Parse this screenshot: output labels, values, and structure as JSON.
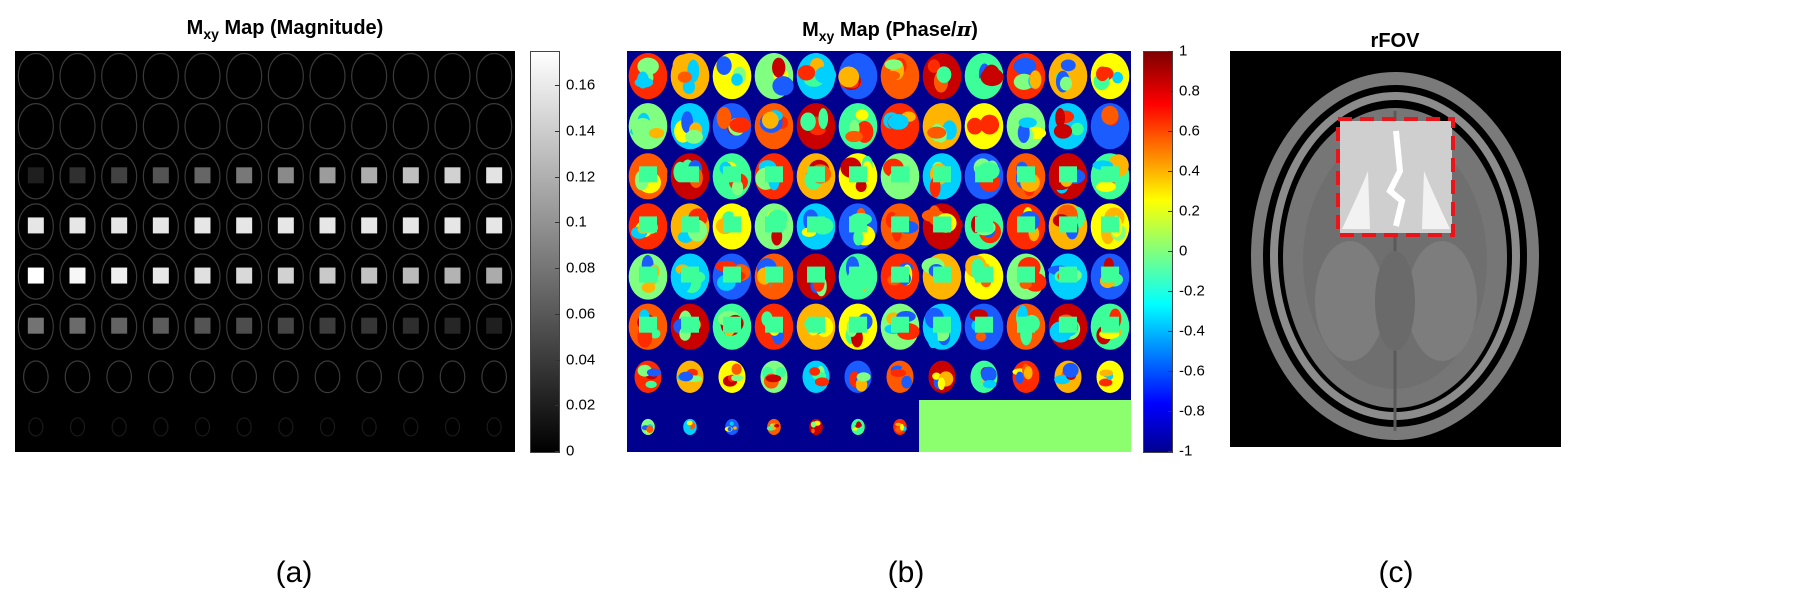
{
  "figure": {
    "panel_a": {
      "title_main": "M",
      "title_sub": "xy",
      "title_rest": " Map (Magnitude)",
      "caption": "(a)",
      "colorbar_ticks": [
        "0.16",
        "0.14",
        "0.12",
        "0.1",
        "0.08",
        "0.06",
        "0.04",
        "0.02",
        "0"
      ],
      "colorbar_values": [
        0.16,
        0.14,
        0.12,
        0.1,
        0.08,
        0.06,
        0.04,
        0.02,
        0
      ],
      "colorbar_range": [
        0,
        0.175
      ],
      "colormap": "gray"
    },
    "panel_b": {
      "title_main": "M",
      "title_sub": "xy",
      "title_rest": " Map (Phase/",
      "title_pi": "π",
      "title_end": ")",
      "caption": "(b)",
      "colorbar_ticks": [
        "1",
        "0.8",
        "0.6",
        "0.4",
        "0.2",
        "0",
        "-0.2",
        "-0.4",
        "-0.6",
        "-0.8",
        "-1"
      ],
      "colorbar_values": [
        1,
        0.8,
        0.6,
        0.4,
        0.2,
        0,
        -0.2,
        -0.4,
        -0.6,
        -0.8,
        -1
      ],
      "colorbar_range": [
        -1,
        1
      ],
      "colormap": "jet"
    },
    "panel_c": {
      "title": "rFOV",
      "caption": "(c)",
      "roi_color": "#e8161b"
    },
    "colors": {
      "jet_background": "#00008f",
      "fill_green": "#8cff6f",
      "background_black": "#000000"
    }
  }
}
